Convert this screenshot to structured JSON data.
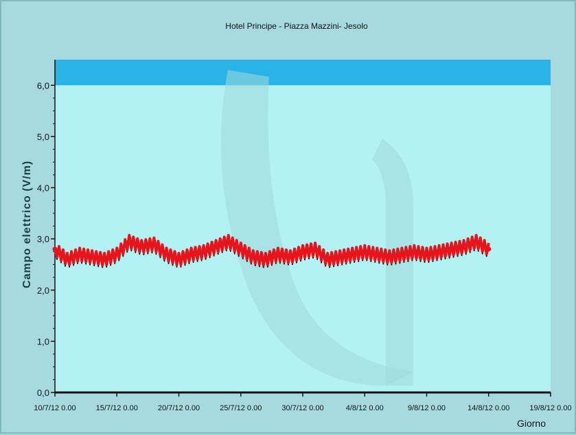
{
  "chart_data": {
    "type": "line",
    "title": "Hotel Principe - Piazza Mazzini- Jesolo",
    "xlabel": "Giorno",
    "ylabel": "Campo elettrico (V/m)",
    "ylim": [
      0,
      6.5
    ],
    "y_ticks": [
      "0,0",
      "1,0",
      "2,0",
      "3,0",
      "4,0",
      "5,0",
      "6,0"
    ],
    "x_ticks": [
      "10/7/12 0.00",
      "15/7/12 0.00",
      "20/7/12 0.00",
      "25/7/12 0.00",
      "30/7/12 0.00",
      "4/8/12 0.00",
      "9/8/12 0.00",
      "14/8/12 0.00",
      "19/8/12 0.00"
    ],
    "x_range_days": [
      "10/7/12",
      "19/8/12"
    ],
    "limit_band": {
      "from": 6.0,
      "to": 6.5,
      "color": "#2ab3e6"
    },
    "grid": false,
    "series": [
      {
        "color": "#e8141b",
        "x_dates": [
          "10/7/12",
          "11/7/12",
          "12/7/12",
          "13/7/12",
          "14/7/12",
          "15/7/12",
          "16/7/12",
          "17/7/12",
          "18/7/12",
          "19/7/12",
          "20/7/12",
          "21/7/12",
          "22/7/12",
          "23/7/12",
          "24/7/12",
          "25/7/12",
          "26/7/12",
          "27/7/12",
          "28/7/12",
          "29/7/12",
          "30/7/12",
          "31/7/12",
          "1/8/12",
          "2/8/12",
          "3/8/12",
          "4/8/12",
          "5/8/12",
          "6/8/12",
          "7/8/12",
          "8/8/12",
          "9/8/12",
          "10/8/12",
          "11/8/12",
          "12/8/12",
          "13/8/12",
          "14/8/12"
        ],
        "values": [
          2.8,
          2.6,
          2.7,
          2.65,
          2.6,
          2.7,
          2.95,
          2.85,
          2.9,
          2.7,
          2.6,
          2.7,
          2.75,
          2.85,
          2.95,
          2.8,
          2.65,
          2.6,
          2.7,
          2.65,
          2.75,
          2.8,
          2.6,
          2.65,
          2.7,
          2.75,
          2.7,
          2.65,
          2.7,
          2.75,
          2.7,
          2.75,
          2.8,
          2.85,
          2.95,
          2.8
        ]
      }
    ]
  }
}
